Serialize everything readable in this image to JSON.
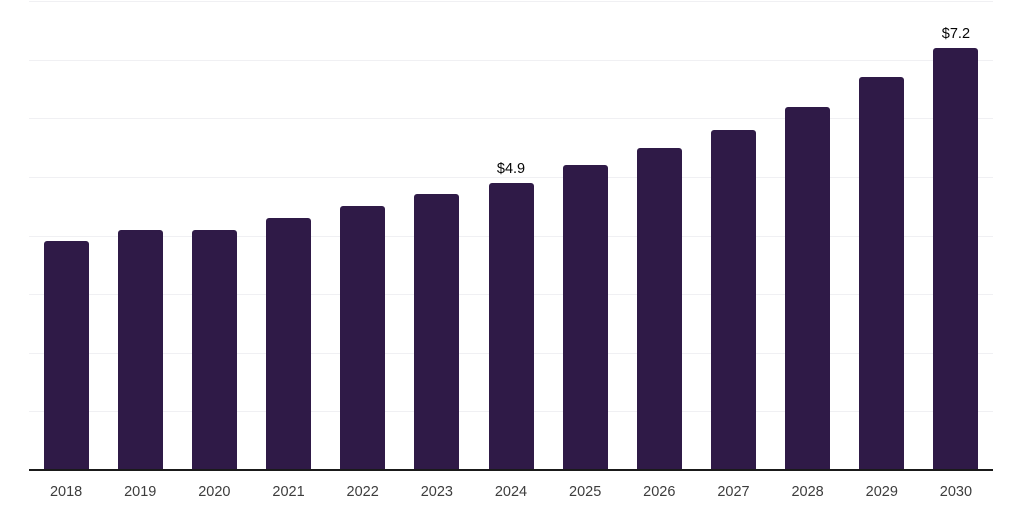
{
  "chart_data": {
    "type": "bar",
    "title": "",
    "xlabel": "",
    "ylabel": "",
    "categories": [
      "2018",
      "2019",
      "2020",
      "2021",
      "2022",
      "2023",
      "2024",
      "2025",
      "2026",
      "2027",
      "2028",
      "2029",
      "2030"
    ],
    "values": [
      3.9,
      4.1,
      4.1,
      4.3,
      4.5,
      4.7,
      4.9,
      5.2,
      5.5,
      5.8,
      6.2,
      6.7,
      7.2
    ],
    "data_labels": [
      "",
      "",
      "",
      "",
      "",
      "",
      "$4.9",
      "",
      "",
      "",
      "",
      "",
      "$7.2"
    ],
    "ylim": [
      0,
      8
    ],
    "gridline_step": 1,
    "grid": "horizontal",
    "legend": "none",
    "colors": {
      "bar": "#2f1a47",
      "gridline": "#f0f0f3",
      "axis_line": "#1a1a1a",
      "tick_label": "#3d3d3d",
      "value_label": "#050505",
      "background": "#ffffff"
    }
  }
}
